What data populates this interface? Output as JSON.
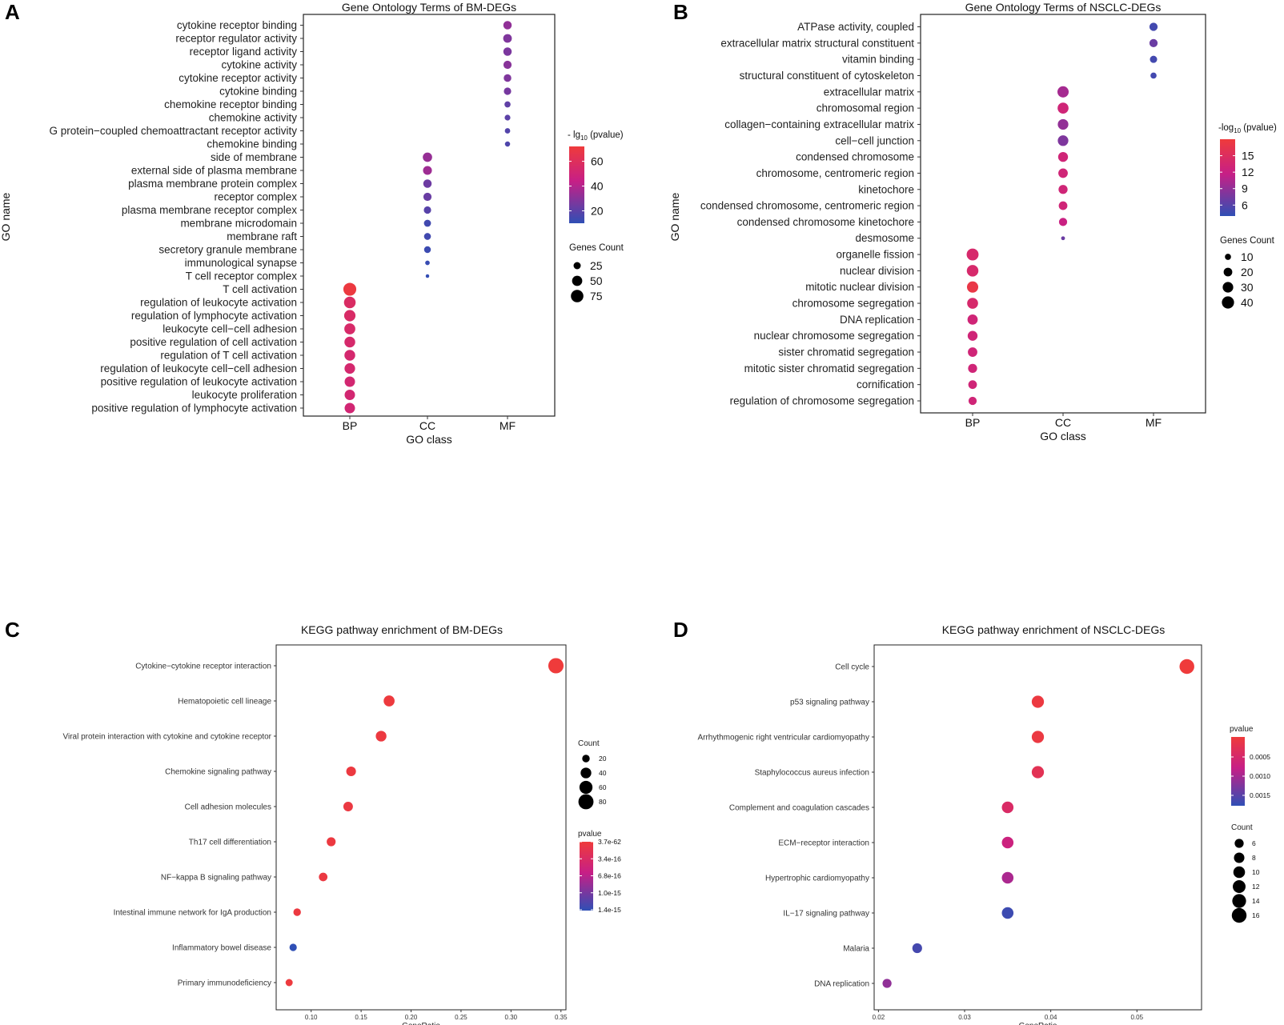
{
  "panel_labels": [
    "A",
    "B",
    "C",
    "D"
  ],
  "gradient_colors": {
    "low": "#2f4fb5",
    "mid": "#c71f86",
    "high": "#ef3b3b"
  },
  "chart_data": [
    {
      "panel": "A",
      "type": "scatter",
      "title": "Gene Ontology Terms of BM-DEGs",
      "xlabel": "GO class",
      "ylabel": "GO name",
      "x_categories": [
        "BP",
        "CC",
        "MF"
      ],
      "color_legend_title": "- lg10 (pvalue)",
      "color_range": [
        10,
        72
      ],
      "color_ticks": [
        20,
        40,
        60
      ],
      "size_legend_title": "Genes Count",
      "size_ticks": [
        25,
        50,
        75
      ],
      "size_range": [
        0,
        85
      ],
      "points": [
        {
          "term": "cytokine receptor binding",
          "class": "MF",
          "count": 34,
          "neglog10p": 32
        },
        {
          "term": "receptor regulator activity",
          "class": "MF",
          "count": 36,
          "neglog10p": 28
        },
        {
          "term": "receptor ligand activity",
          "class": "MF",
          "count": 34,
          "neglog10p": 27
        },
        {
          "term": "cytokine activity",
          "class": "MF",
          "count": 32,
          "neglog10p": 30
        },
        {
          "term": "cytokine receptor activity",
          "class": "MF",
          "count": 28,
          "neglog10p": 28
        },
        {
          "term": "cytokine binding",
          "class": "MF",
          "count": 26,
          "neglog10p": 26
        },
        {
          "term": "chemokine receptor binding",
          "class": "MF",
          "count": 18,
          "neglog10p": 21
        },
        {
          "term": "chemokine activity",
          "class": "MF",
          "count": 16,
          "neglog10p": 20
        },
        {
          "term": "G protein-coupled chemoattractant receptor activity",
          "class": "MF",
          "count": 14,
          "neglog10p": 18
        },
        {
          "term": "chemokine binding",
          "class": "MF",
          "count": 13,
          "neglog10p": 17
        },
        {
          "term": "side of membrane",
          "class": "CC",
          "count": 42,
          "neglog10p": 33
        },
        {
          "term": "external side of plasma membrane",
          "class": "CC",
          "count": 38,
          "neglog10p": 35
        },
        {
          "term": "plasma membrane protein complex",
          "class": "CC",
          "count": 34,
          "neglog10p": 24
        },
        {
          "term": "receptor complex",
          "class": "CC",
          "count": 32,
          "neglog10p": 23
        },
        {
          "term": "plasma membrane receptor complex",
          "class": "CC",
          "count": 26,
          "neglog10p": 19
        },
        {
          "term": "membrane microdomain",
          "class": "CC",
          "count": 24,
          "neglog10p": 14
        },
        {
          "term": "membrane raft",
          "class": "CC",
          "count": 23,
          "neglog10p": 14
        },
        {
          "term": "secretory granule membrane",
          "class": "CC",
          "count": 22,
          "neglog10p": 13
        },
        {
          "term": "immunological synapse",
          "class": "CC",
          "count": 10,
          "neglog10p": 12
        },
        {
          "term": "T cell receptor complex",
          "class": "CC",
          "count": 6,
          "neglog10p": 11
        },
        {
          "term": "T cell activation",
          "class": "BP",
          "count": 80,
          "neglog10p": 70
        },
        {
          "term": "regulation of leukocyte activation",
          "class": "BP",
          "count": 66,
          "neglog10p": 57
        },
        {
          "term": "regulation of lymphocyte activation",
          "class": "BP",
          "count": 62,
          "neglog10p": 56
        },
        {
          "term": "leukocyte cell-cell adhesion",
          "class": "BP",
          "count": 58,
          "neglog10p": 55
        },
        {
          "term": "positive regulation of cell activation",
          "class": "BP",
          "count": 56,
          "neglog10p": 54
        },
        {
          "term": "regulation of T cell activation",
          "class": "BP",
          "count": 56,
          "neglog10p": 53
        },
        {
          "term": "regulation of leukocyte cell-cell adhesion",
          "class": "BP",
          "count": 54,
          "neglog10p": 53
        },
        {
          "term": "positive regulation of leukocyte activation",
          "class": "BP",
          "count": 52,
          "neglog10p": 52
        },
        {
          "term": "leukocyte proliferation",
          "class": "BP",
          "count": 52,
          "neglog10p": 52
        },
        {
          "term": "positive regulation of lymphocyte activation",
          "class": "BP",
          "count": 52,
          "neglog10p": 51
        }
      ]
    },
    {
      "panel": "B",
      "type": "scatter",
      "title": "Gene Ontology Terms of NSCLC-DEGs",
      "xlabel": "GO class",
      "ylabel": "GO name",
      "x_categories": [
        "BP",
        "CC",
        "MF"
      ],
      "color_legend_title": "-log10 (pvalue)",
      "color_range": [
        4,
        18
      ],
      "color_ticks": [
        6,
        9,
        12,
        15
      ],
      "size_legend_title": "Genes Count",
      "size_ticks": [
        10,
        20,
        30,
        40
      ],
      "size_range": [
        0,
        45
      ],
      "points": [
        {
          "term": "ATPase activity, coupled",
          "class": "MF",
          "count": 18,
          "neglog10p": 5
        },
        {
          "term": "extracellular matrix structural constituent",
          "class": "MF",
          "count": 18,
          "neglog10p": 7
        },
        {
          "term": "vitamin binding",
          "class": "MF",
          "count": 14,
          "neglog10p": 5
        },
        {
          "term": "structural constituent of cytoskeleton",
          "class": "MF",
          "count": 10,
          "neglog10p": 5
        },
        {
          "term": "extracellular matrix",
          "class": "CC",
          "count": 34,
          "neglog10p": 10
        },
        {
          "term": "chromosomal region",
          "class": "CC",
          "count": 32,
          "neglog10p": 13
        },
        {
          "term": "collagen-containing extracellular matrix",
          "class": "CC",
          "count": 30,
          "neglog10p": 9
        },
        {
          "term": "cell-cell junction",
          "class": "CC",
          "count": 30,
          "neglog10p": 8
        },
        {
          "term": "condensed chromosome",
          "class": "CC",
          "count": 26,
          "neglog10p": 13
        },
        {
          "term": "chromosome, centromeric region",
          "class": "CC",
          "count": 24,
          "neglog10p": 13
        },
        {
          "term": "kinetochore",
          "class": "CC",
          "count": 22,
          "neglog10p": 13
        },
        {
          "term": "condensed chromosome, centromeric region",
          "class": "CC",
          "count": 20,
          "neglog10p": 13
        },
        {
          "term": "condensed chromosome kinetochore",
          "class": "CC",
          "count": 18,
          "neglog10p": 12
        },
        {
          "term": "desmosome",
          "class": "CC",
          "count": 4,
          "neglog10p": 7
        },
        {
          "term": "organelle fission",
          "class": "BP",
          "count": 38,
          "neglog10p": 14
        },
        {
          "term": "nuclear division",
          "class": "BP",
          "count": 36,
          "neglog10p": 14
        },
        {
          "term": "mitotic nuclear division",
          "class": "BP",
          "count": 34,
          "neglog10p": 17
        },
        {
          "term": "chromosome segregation",
          "class": "BP",
          "count": 32,
          "neglog10p": 14
        },
        {
          "term": "DNA replication",
          "class": "BP",
          "count": 28,
          "neglog10p": 13
        },
        {
          "term": "nuclear chromosome segregation",
          "class": "BP",
          "count": 26,
          "neglog10p": 13
        },
        {
          "term": "sister chromatid segregation",
          "class": "BP",
          "count": 24,
          "neglog10p": 13
        },
        {
          "term": "mitotic sister chromatid segregation",
          "class": "BP",
          "count": 22,
          "neglog10p": 13
        },
        {
          "term": "cornification",
          "class": "BP",
          "count": 20,
          "neglog10p": 13
        },
        {
          "term": "regulation of chromosome segregation",
          "class": "BP",
          "count": 18,
          "neglog10p": 13
        }
      ]
    },
    {
      "panel": "C",
      "type": "scatter",
      "title": "KEGG pathway enrichment of BM-DEGs",
      "xlabel": "GeneRatio",
      "x_ticks": [
        "0.10",
        "0.15",
        "0.20",
        "0.25",
        "0.30",
        "0.35"
      ],
      "xlim": [
        0.065,
        0.355
      ],
      "size_legend_title": "Count",
      "size_ticks": [
        20,
        40,
        60,
        80
      ],
      "size_range": [
        0,
        90
      ],
      "color_legend_title": "pvalue",
      "color_ticks": [
        "3.7e-62",
        "3.4e-16",
        "6.8e-16",
        "1.0e-15",
        "1.4e-15"
      ],
      "points": [
        {
          "term": "Cytokine-cytokine receptor interaction",
          "ratio": 0.345,
          "count": 82,
          "score": 1.0
        },
        {
          "term": "Hematopoietic cell lineage",
          "ratio": 0.178,
          "count": 42,
          "score": 0.98
        },
        {
          "term": "Viral protein interaction with cytokine and cytokine receptor",
          "ratio": 0.17,
          "count": 40,
          "score": 0.97
        },
        {
          "term": "Chemokine signaling pathway",
          "ratio": 0.14,
          "count": 33,
          "score": 0.97
        },
        {
          "term": "Cell adhesion molecules",
          "ratio": 0.137,
          "count": 32,
          "score": 0.96
        },
        {
          "term": "Th17 cell differentiation",
          "ratio": 0.12,
          "count": 28,
          "score": 0.97
        },
        {
          "term": "NF-kappa B signaling pathway",
          "ratio": 0.112,
          "count": 26,
          "score": 0.96
        },
        {
          "term": "Intestinal immune network for IgA production",
          "ratio": 0.086,
          "count": 20,
          "score": 0.97
        },
        {
          "term": "Inflammatory bowel disease",
          "ratio": 0.082,
          "count": 19,
          "score": 0.0
        },
        {
          "term": "Primary immunodeficiency",
          "ratio": 0.078,
          "count": 18,
          "score": 0.98
        }
      ]
    },
    {
      "panel": "D",
      "type": "scatter",
      "title": "KEGG pathway enrichment of NSCLC-DEGs",
      "xlabel": "GeneRatio",
      "x_ticks": [
        "0.02",
        "0.03",
        "0.04",
        "0.05"
      ],
      "xlim": [
        0.0195,
        0.0575
      ],
      "color_legend_title": "pvalue",
      "color_ticks": [
        "0.0005",
        "0.0010",
        "0.0015"
      ],
      "size_legend_title": "Count",
      "size_ticks": [
        6,
        8,
        10,
        12,
        14,
        16
      ],
      "size_range": [
        0,
        17
      ],
      "points": [
        {
          "term": "Cell cycle",
          "ratio": 0.0558,
          "count": 16,
          "score": 1.0
        },
        {
          "term": "p53 signaling pathway",
          "ratio": 0.0385,
          "count": 11,
          "score": 0.97
        },
        {
          "term": "Arrhythmogenic right ventricular cardiomyopathy",
          "ratio": 0.0385,
          "count": 11,
          "score": 0.96
        },
        {
          "term": "Staphylococcus aureus infection",
          "ratio": 0.0385,
          "count": 11,
          "score": 0.85
        },
        {
          "term": "Complement and coagulation cascades",
          "ratio": 0.035,
          "count": 10,
          "score": 0.75
        },
        {
          "term": "ECM-receptor interaction",
          "ratio": 0.035,
          "count": 10,
          "score": 0.6
        },
        {
          "term": "Hypertrophic cardiomyopathy",
          "ratio": 0.035,
          "count": 10,
          "score": 0.45
        },
        {
          "term": "IL-17 signaling pathway",
          "ratio": 0.035,
          "count": 10,
          "score": 0.05
        },
        {
          "term": "Malaria",
          "ratio": 0.0245,
          "count": 7,
          "score": 0.08
        },
        {
          "term": "DNA replication",
          "ratio": 0.021,
          "count": 6,
          "score": 0.35
        }
      ]
    }
  ]
}
